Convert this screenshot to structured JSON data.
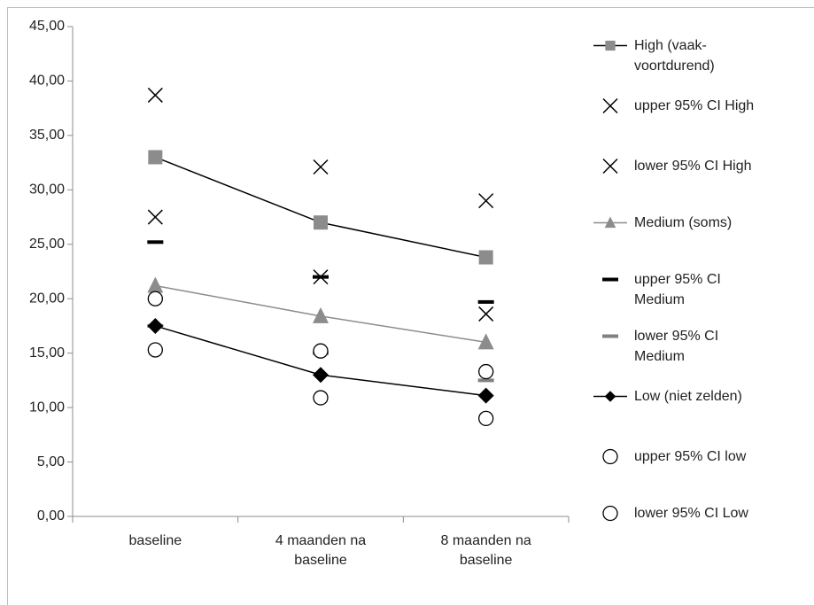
{
  "chart_data": {
    "type": "line",
    "categories": [
      "baseline",
      "4 maanden na baseline",
      "8 maanden na baseline"
    ],
    "ylim": [
      0,
      45
    ],
    "yticks": [
      {
        "value": 0,
        "label": "0,00"
      },
      {
        "value": 5,
        "label": "5,00"
      },
      {
        "value": 10,
        "label": "10,00"
      },
      {
        "value": 15,
        "label": "15,00"
      },
      {
        "value": 20,
        "label": "20,00"
      },
      {
        "value": 25,
        "label": "25,00"
      },
      {
        "value": 30,
        "label": "30,00"
      },
      {
        "value": 35,
        "label": "35,00"
      },
      {
        "value": 40,
        "label": "40,00"
      },
      {
        "value": 45,
        "label": "45,00"
      }
    ],
    "legend": "right",
    "series": [
      {
        "name": "High (vaak-voortdurend)",
        "marker": "square",
        "color": "#8c8c8c",
        "line_color": "#000000",
        "values": [
          33.0,
          27.0,
          23.8
        ]
      },
      {
        "name": "upper 95% CI High",
        "marker": "x",
        "color": "#000000",
        "values": [
          38.7,
          32.1,
          29.0
        ]
      },
      {
        "name": "lower 95% CI High",
        "marker": "x",
        "color": "#000000",
        "values": [
          27.5,
          22.0,
          18.6
        ]
      },
      {
        "name": "Medium (soms)",
        "marker": "triangle",
        "color": "#8c8c8c",
        "line_color": "#8c8c8c",
        "values": [
          21.2,
          18.4,
          16.0
        ]
      },
      {
        "name": "upper 95% CI Medium",
        "marker": "dash",
        "color": "#000000",
        "values": [
          25.2,
          22.0,
          19.7
        ]
      },
      {
        "name": "lower 95% CI Medium",
        "marker": "dash",
        "color": "#808080",
        "values": [
          17.5,
          15.0,
          12.5
        ]
      },
      {
        "name": "Low (niet zelden)",
        "marker": "diamond",
        "color": "#000000",
        "line_color": "#000000",
        "values": [
          17.5,
          13.0,
          11.1
        ]
      },
      {
        "name": "upper 95% CI low",
        "marker": "circle",
        "color": "#000000",
        "values": [
          20.0,
          15.2,
          13.3
        ]
      },
      {
        "name": "lower 95% CI Low",
        "marker": "circle",
        "color": "#000000",
        "values": [
          15.3,
          10.9,
          9.0
        ]
      }
    ]
  }
}
